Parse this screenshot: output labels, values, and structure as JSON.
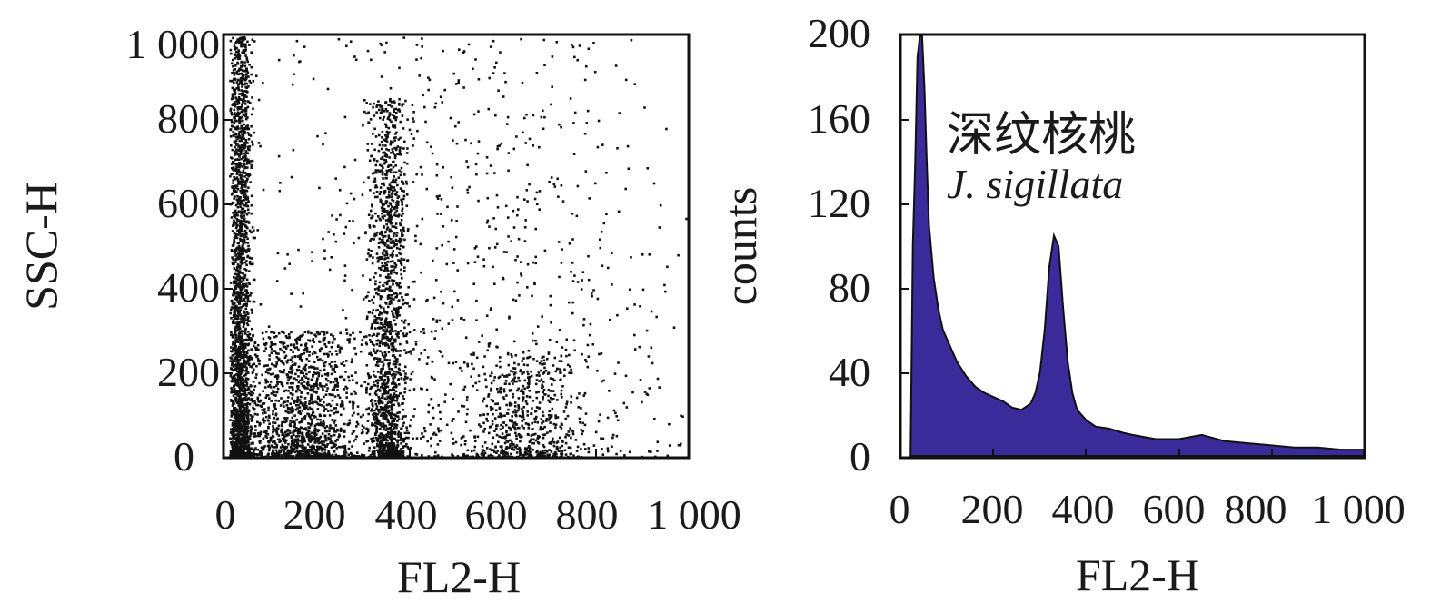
{
  "chart_data": [
    {
      "type": "scatter",
      "title": "",
      "xlabel": "FL2-H",
      "ylabel": "SSC-H",
      "xlim": [
        0,
        1000
      ],
      "ylim": [
        0,
        1000
      ],
      "xticks": [
        "0",
        "200",
        "400",
        "600",
        "800",
        "1 000"
      ],
      "yticks": [
        "0",
        "200",
        "400",
        "600",
        "800",
        "1 000"
      ],
      "grid": false,
      "color": "#111111",
      "clusters": [
        {
          "x_center": 30,
          "x_spread": 22,
          "y_max": 1000,
          "weight": 0.32
        },
        {
          "x_center": 150,
          "x_spread": 140,
          "y_max": 300,
          "weight": 0.22
        },
        {
          "x_center": 350,
          "x_spread": 40,
          "y_max": 850,
          "weight": 0.22
        },
        {
          "x_center": 650,
          "x_spread": 120,
          "y_max": 250,
          "weight": 0.08
        },
        {
          "x_center": 520,
          "x_spread": 500,
          "y_max": 1000,
          "weight": 0.16
        }
      ]
    },
    {
      "type": "area",
      "title": "",
      "xlabel": "FL2-H",
      "ylabel": "counts",
      "xlim": [
        0,
        1000
      ],
      "ylim": [
        0,
        200
      ],
      "xticks": [
        "0",
        "200",
        "400",
        "600",
        "800",
        "1 000"
      ],
      "yticks": [
        "0",
        "40",
        "80",
        "120",
        "160",
        "200"
      ],
      "grid": false,
      "fill_color": "#3b2a99",
      "line_color": "#111111",
      "annotation_cn": "深纹核桃",
      "annotation_latin": "J. sigillata",
      "x": [
        20,
        25,
        30,
        35,
        40,
        45,
        50,
        55,
        60,
        70,
        80,
        90,
        100,
        120,
        140,
        160,
        180,
        200,
        220,
        240,
        260,
        280,
        290,
        300,
        310,
        320,
        330,
        340,
        350,
        360,
        370,
        380,
        400,
        420,
        450,
        480,
        500,
        550,
        600,
        650,
        700,
        750,
        800,
        850,
        900,
        950,
        1000
      ],
      "y": [
        0,
        100,
        140,
        190,
        200,
        200,
        175,
        140,
        110,
        85,
        70,
        60,
        55,
        45,
        38,
        33,
        30,
        28,
        26,
        23,
        22,
        25,
        30,
        40,
        60,
        90,
        105,
        100,
        70,
        45,
        30,
        22,
        17,
        14,
        13,
        11,
        10,
        8,
        8,
        10,
        7,
        6,
        5,
        4,
        4,
        3,
        3
      ]
    }
  ]
}
